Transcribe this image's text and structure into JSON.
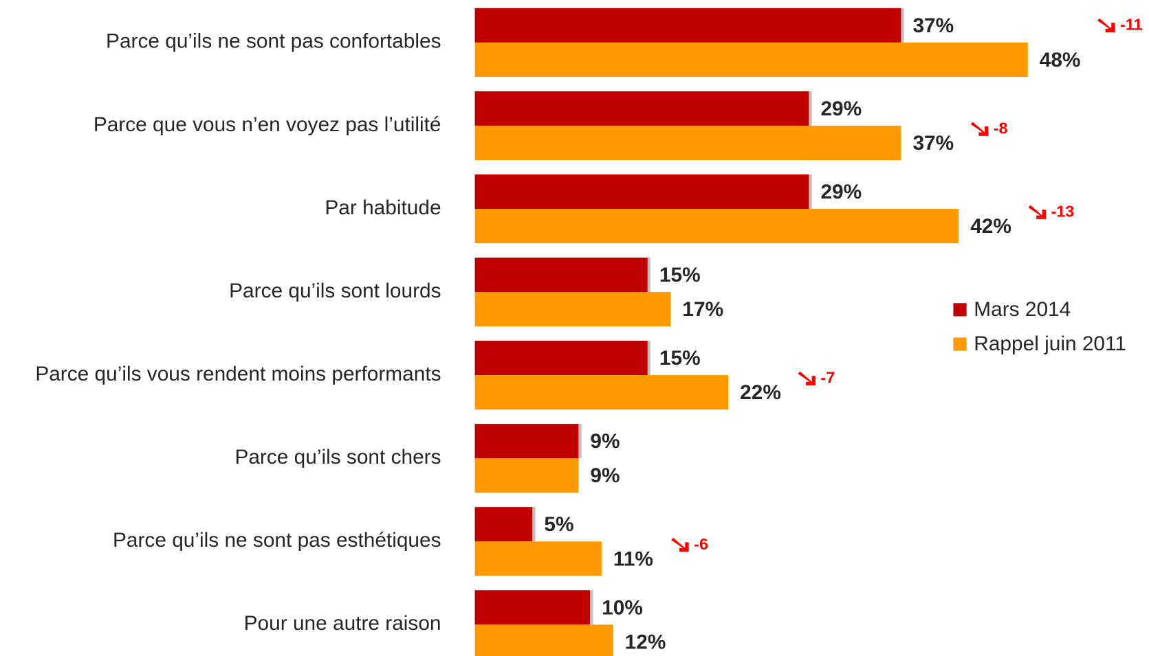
{
  "chart_data": {
    "type": "hbar",
    "categories": [
      "Parce qu’ils ne sont pas confortables",
      "Parce que vous n’en voyez pas l’utilité",
      "Par habitude",
      "Parce qu’ils sont lourds",
      "Parce qu’ils vous rendent moins performants",
      "Parce qu’ils sont chers",
      "Parce qu’ils ne sont pas esthétiques",
      "Pour une autre raison"
    ],
    "series": [
      {
        "name": "Mars 2014",
        "color": "#c00000",
        "values": [
          37,
          29,
          29,
          15,
          15,
          9,
          5,
          10
        ],
        "value_labels": [
          "37%",
          "29%",
          "29%",
          "15%",
          "15%",
          "9%",
          "5%",
          "10%"
        ]
      },
      {
        "name": "Rappel juin 2011",
        "color": "#ff9900",
        "values": [
          48,
          37,
          42,
          17,
          22,
          9,
          11,
          12
        ],
        "value_labels": [
          "48%",
          "37%",
          "42%",
          "17%",
          "22%",
          "9%",
          "11%",
          "12%"
        ]
      }
    ],
    "annotations": [
      "-11",
      "-8",
      "-13",
      null,
      "-7",
      null,
      "-6",
      null
    ],
    "annotation_color": "#ff0000",
    "legend": "right"
  }
}
